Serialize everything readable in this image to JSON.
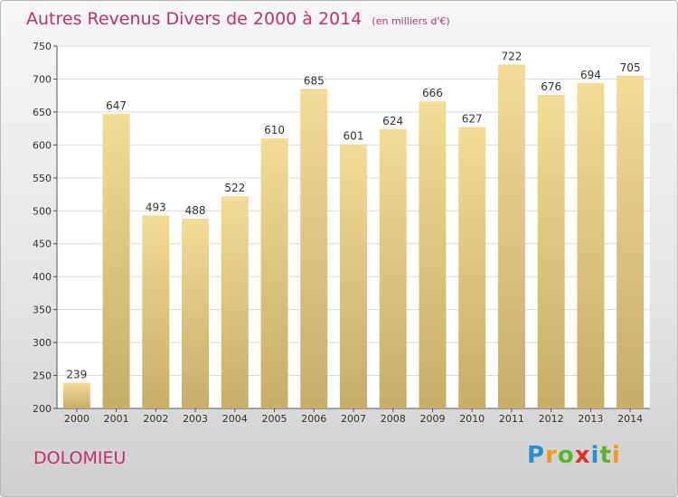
{
  "title": "Autres Revenus Divers de 2000 à 2014",
  "subtitle": "(en milliers d'€)",
  "location": "DOLOMIEU",
  "brand": {
    "letters": [
      "P",
      "r",
      "o",
      "x",
      "i",
      "t",
      "i"
    ],
    "colors": [
      "#2a8fd6",
      "#f39a1e",
      "#5db52e",
      "#e0312c",
      "#2a8fd6",
      "#5db52e",
      "#f39a1e"
    ]
  },
  "colors": {
    "bar_top": "#f3dc96",
    "bar_bottom": "#c7ad67",
    "accent": "#c0306e"
  },
  "chart_data": {
    "type": "bar",
    "title": "Autres Revenus Divers de 2000 à 2014",
    "subtitle": "(en milliers d'€)",
    "categories": [
      "2000",
      "2001",
      "2002",
      "2003",
      "2004",
      "2005",
      "2006",
      "2007",
      "2008",
      "2009",
      "2010",
      "2011",
      "2012",
      "2013",
      "2014"
    ],
    "values": [
      239,
      647,
      493,
      488,
      522,
      610,
      685,
      601,
      624,
      666,
      627,
      722,
      676,
      694,
      705
    ],
    "ylim": [
      200,
      750
    ],
    "yticks": [
      200,
      250,
      300,
      350,
      400,
      450,
      500,
      550,
      600,
      650,
      700,
      750
    ],
    "grid": true,
    "legend": "none"
  }
}
